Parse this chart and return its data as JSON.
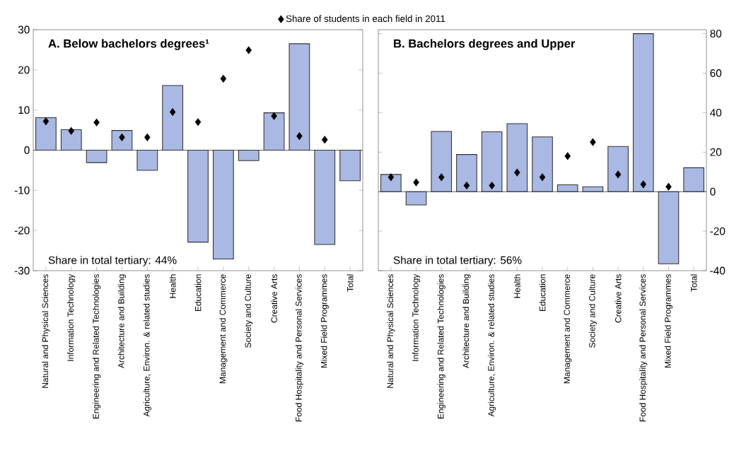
{
  "chart_data": [
    {
      "type": "bar",
      "title": "A. Below bachelors degrees¹",
      "annotations": [
        "Share in total tertiary: 44%"
      ],
      "categories": [
        "Natural and Physical Sciences",
        "Information Technology",
        "Engineering and Related Technologies",
        "Architecture and Building",
        "Agriculture, Environ. & related studies",
        "Health",
        "Education",
        "Management and Commerce",
        "Society and Culture",
        "Creative Arts",
        "Food Hospitality and Personal Services",
        "Mixed Field Programmes",
        "Total"
      ],
      "series": [
        {
          "color": "#a9b9e3",
          "values": [
            8.1,
            5.1,
            -3.1,
            4.9,
            -5.0,
            16.1,
            -22.9,
            -27.1,
            -2.6,
            9.3,
            26.5,
            -23.5,
            -7.6
          ]
        },
        {
          "type": "scatter",
          "name": "Share of students in each field in 2011",
          "color": "#000000",
          "values": [
            7.2,
            4.8,
            6.9,
            3.2,
            3.2,
            9.5,
            7.0,
            17.8,
            24.9,
            8.5,
            3.5,
            2.6,
            null
          ]
        }
      ],
      "marker": "diamond",
      "legend": "top",
      "ylim": [
        -30,
        30
      ],
      "yticks": [
        -30,
        -20,
        -10,
        0,
        10,
        20,
        30
      ]
    },
    {
      "type": "bar",
      "title": "B. Bachelors degrees and Upper",
      "annotations": [
        "Share in total tertiary: 56%"
      ],
      "categories": [
        "Natural and Physical Sciences",
        "Information Technology",
        "Engineering and Related Technologies",
        "Architecture and Building",
        "Agriculture, Environ. & related studies",
        "Health",
        "Education",
        "Management and Commerce",
        "Society and Culture",
        "Creative Arts",
        "Food Hospitality and Personal Services",
        "Mixed Field Programmes",
        "Total"
      ],
      "series": [
        {
          "color": "#a9b9e3",
          "values": [
            8.7,
            -6.7,
            30.5,
            18.8,
            30.3,
            34.4,
            27.7,
            3.5,
            2.5,
            22.9,
            80,
            -36.5,
            12.1
          ]
        },
        {
          "type": "scatter",
          "color": "#000000",
          "values": [
            7.3,
            4.7,
            7.3,
            3.1,
            3.1,
            9.7,
            7.3,
            18.0,
            25.1,
            8.7,
            3.7,
            2.5,
            null
          ]
        }
      ],
      "marker": "diamond",
      "ylim": [
        -40,
        82
      ],
      "yticks": [
        -40,
        -20,
        0,
        20,
        40,
        60,
        80
      ]
    }
  ]
}
